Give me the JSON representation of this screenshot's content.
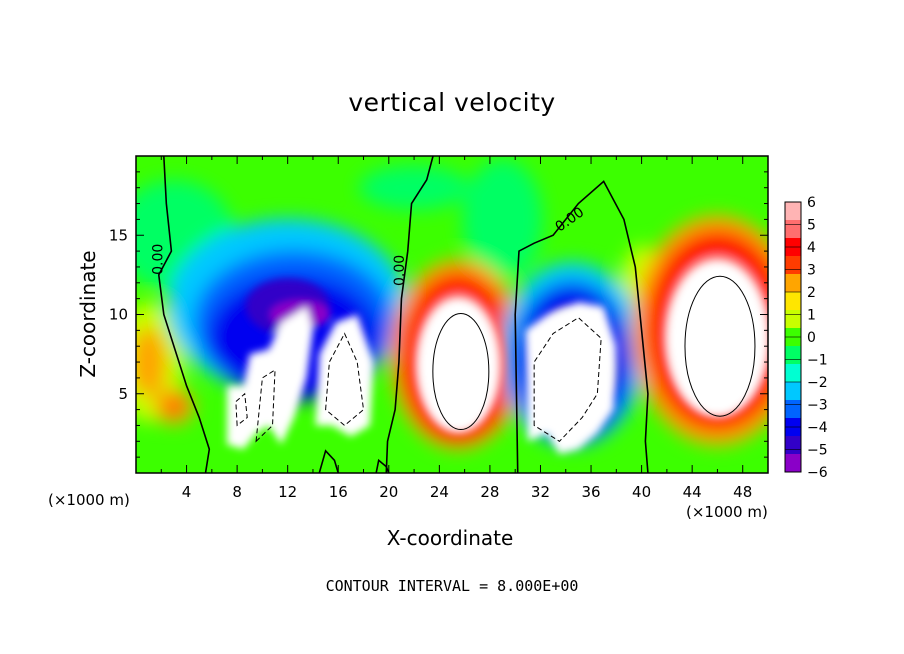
{
  "chart_data": {
    "type": "heatmap",
    "title": "vertical velocity",
    "xlabel": "X-coordinate",
    "ylabel": "Z-coordinate",
    "x_units": "(×1000 m)",
    "y_units": "(×1000 m)",
    "xlim": [
      0,
      50
    ],
    "ylim": [
      0,
      20
    ],
    "x_ticks": [
      4,
      8,
      12,
      16,
      20,
      24,
      28,
      32,
      36,
      40,
      44,
      48
    ],
    "y_ticks": [
      5,
      10,
      15
    ],
    "colorbar": {
      "min": -6,
      "max": 6,
      "labels": [
        6,
        5,
        4,
        3,
        2,
        1,
        0,
        -1,
        -2,
        -3,
        -4,
        -5,
        -6
      ]
    },
    "contour_interval_label": "CONTOUR INTERVAL = 8.000E+00",
    "contour_labels": [
      "0.00",
      "0.00",
      "0.00"
    ],
    "features": [
      {
        "sign": "negative",
        "x_range": [
          4,
          20
        ],
        "z_range": [
          1,
          16
        ]
      },
      {
        "sign": "positive",
        "x_range": [
          21,
          30
        ],
        "z_range": [
          0.5,
          14
        ]
      },
      {
        "sign": "negative",
        "x_range": [
          30,
          39
        ],
        "z_range": [
          0.5,
          14
        ]
      },
      {
        "sign": "positive",
        "x_range": [
          41,
          50
        ],
        "z_range": [
          1,
          17
        ]
      }
    ]
  },
  "colors": {
    "colormap": [
      "#8a00c8",
      "#3200c8",
      "#0000f0",
      "#0064ff",
      "#00c8ff",
      "#00ffd2",
      "#00ff64",
      "#3cff00",
      "#c8ff00",
      "#ffe600",
      "#ffa500",
      "#ff3c00",
      "#ff0000",
      "#ff6e6e",
      "#ffb4b4"
    ]
  }
}
